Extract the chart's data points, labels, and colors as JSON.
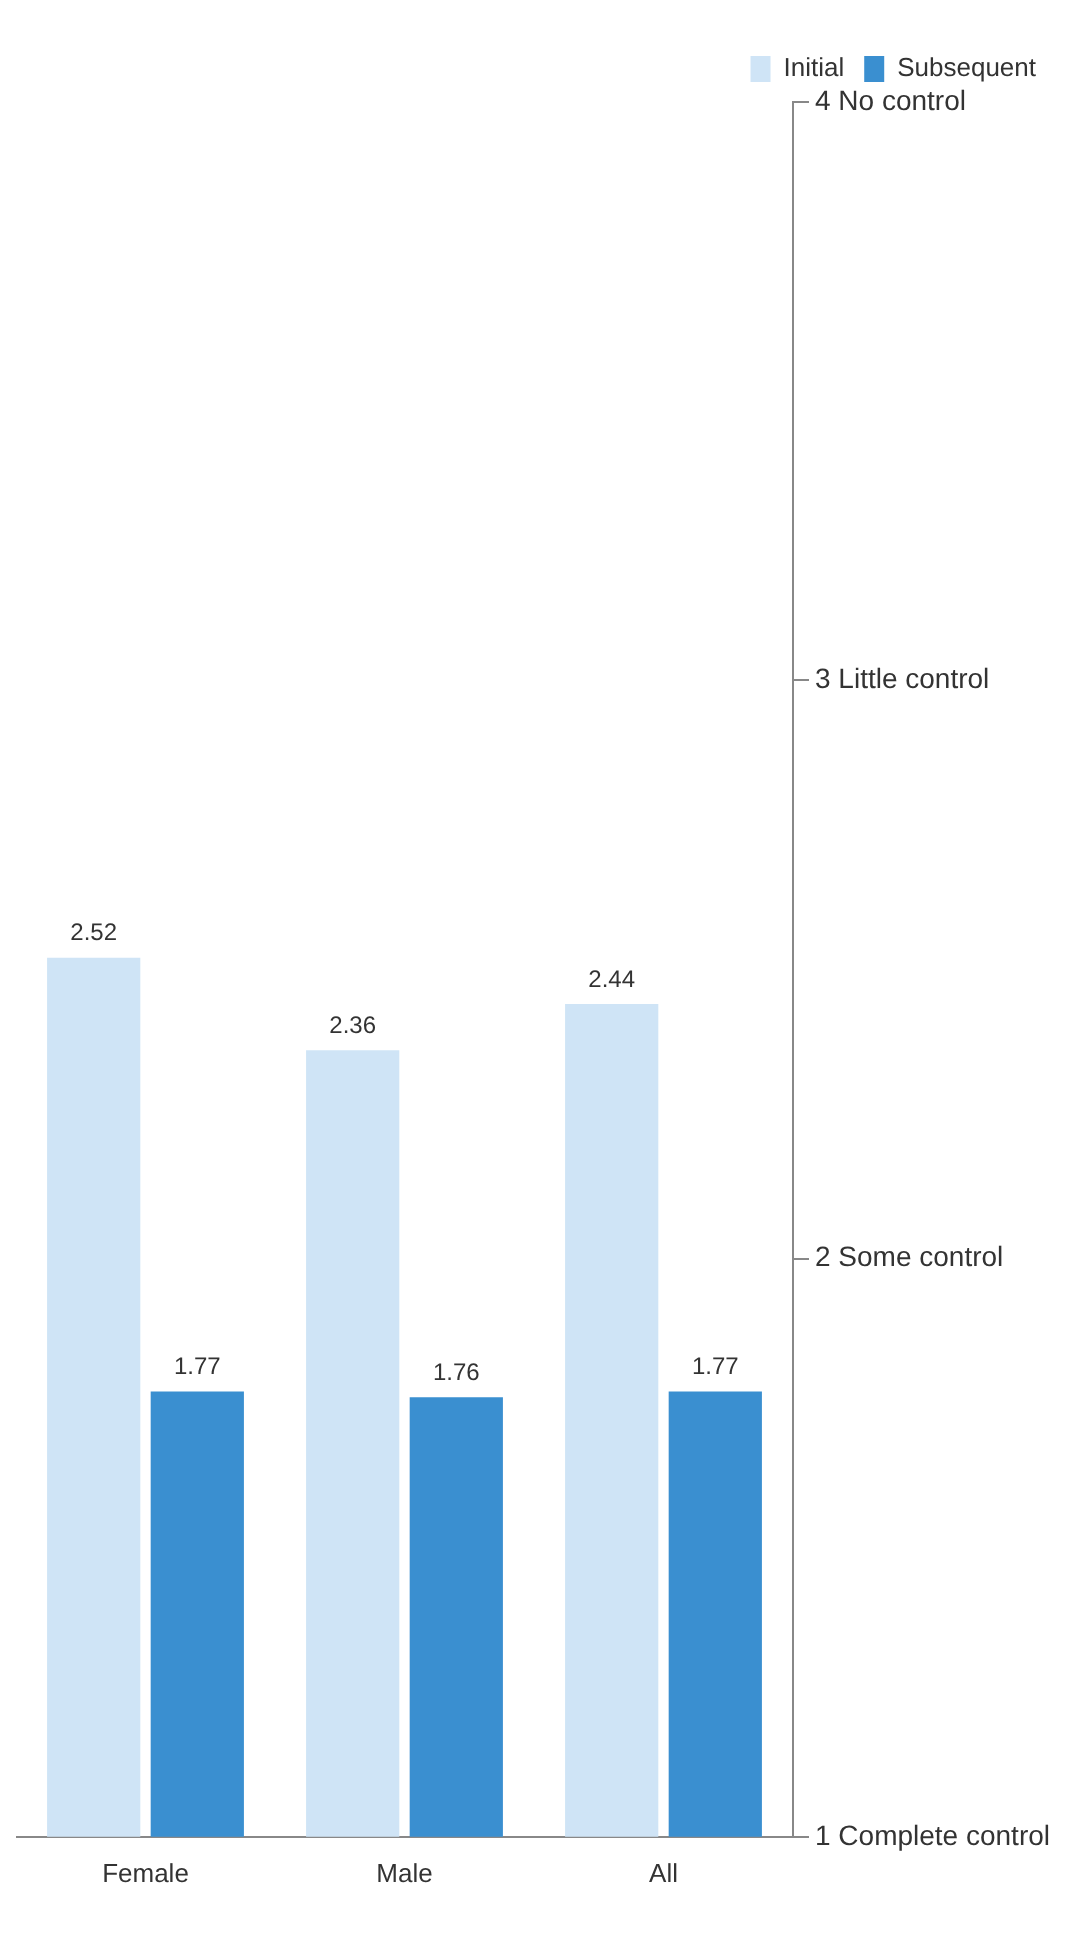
{
  "chart_data": {
    "type": "bar",
    "categories": [
      "Female",
      "Male",
      "All"
    ],
    "series": [
      {
        "name": "Initial",
        "color": "#cfe4f6",
        "values": [
          2.52,
          2.36,
          2.44
        ]
      },
      {
        "name": "Subsequent",
        "color": "#3a8fd0",
        "values": [
          1.77,
          1.76,
          1.77
        ]
      }
    ],
    "ylim": [
      1,
      4
    ],
    "yticks": [
      {
        "value": 1,
        "label": "1 Complete control"
      },
      {
        "value": 2,
        "label": "2 Some control"
      },
      {
        "value": 3,
        "label": "3 Little control"
      },
      {
        "value": 4,
        "label": "4 No control"
      }
    ],
    "data_labels": true,
    "grid": false,
    "legend": "top right"
  }
}
